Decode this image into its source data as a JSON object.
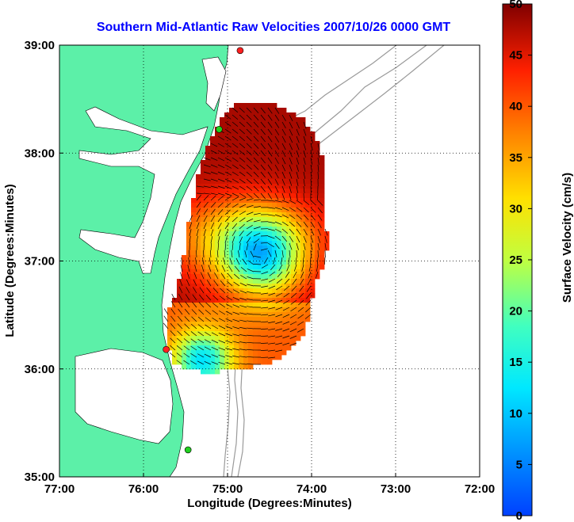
{
  "title": "Southern Mid-Atlantic Raw Velocities 2007/10/26 0000 GMT",
  "x_axis": {
    "label": "Longitude (Degrees:Minutes)",
    "ticks": [
      "77:00",
      "76:00",
      "75:00",
      "74:00",
      "73:00",
      "72:00"
    ],
    "range": [
      -77,
      -72
    ]
  },
  "y_axis": {
    "label": "Latitude (Degrees:Minutes)",
    "ticks": [
      "39:00",
      "38:00",
      "37:00",
      "36:00",
      "35:00"
    ],
    "range": [
      35,
      39
    ]
  },
  "colorbar": {
    "label": "Surface Velocity (cm/s)",
    "ticks": [
      "50",
      "45",
      "40",
      "35",
      "30",
      "25",
      "20",
      "15",
      "10",
      "5",
      "0"
    ],
    "range": [
      0,
      50
    ],
    "colormap": "jet"
  },
  "colors": {
    "land": "#5cf0a8",
    "water": "#ffffff",
    "bathymetry": "#9a9a9a",
    "title": "#0000ff",
    "station_red": "#ff2020",
    "station_green": "#20d020"
  },
  "stations": [
    {
      "color": "red",
      "lon": -74.85,
      "lat": 38.95
    },
    {
      "color": "green",
      "lon": -75.1,
      "lat": 38.22
    },
    {
      "color": "red",
      "lon": -75.73,
      "lat": 36.18
    },
    {
      "color": "green",
      "lon": -75.47,
      "lat": 35.25
    }
  ],
  "grid": true
}
